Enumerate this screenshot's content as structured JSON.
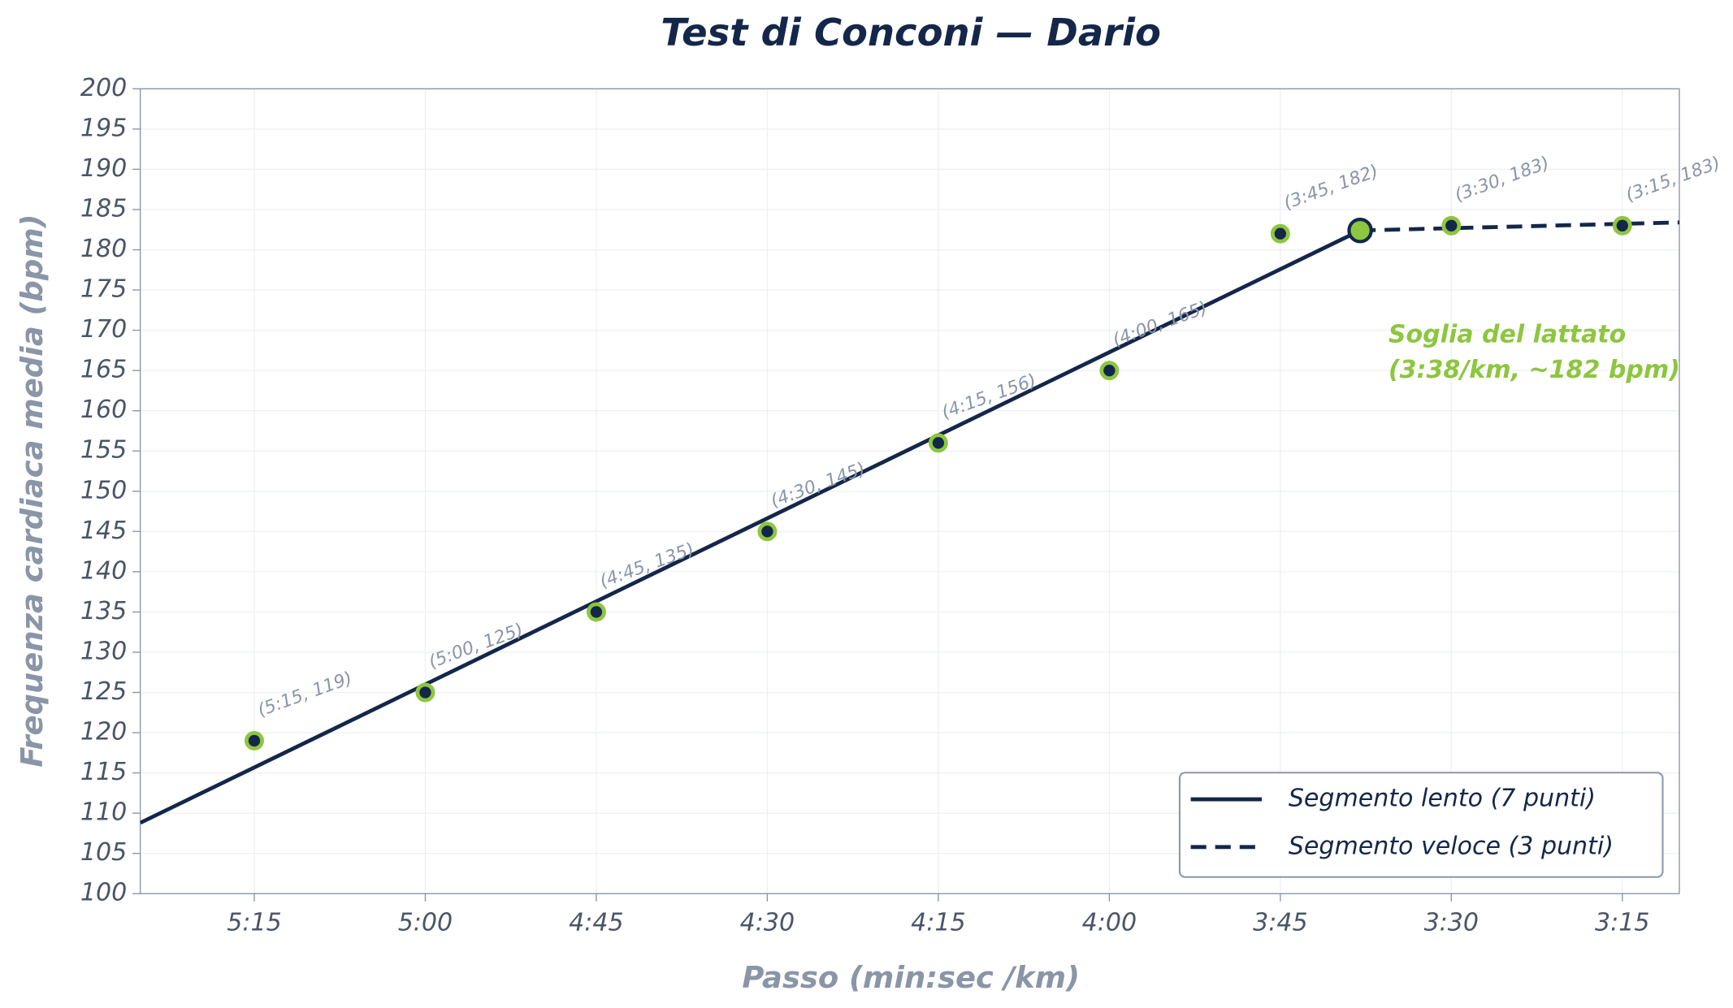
{
  "chart_data": {
    "type": "line",
    "title": "Test di Conconi — Dario",
    "x_label": "Passo (min:sec /km)",
    "y_label": "Frequenza cardiaca media (bpm)",
    "xlim": [
      325,
      190
    ],
    "ylim": [
      100,
      200
    ],
    "xticks": [
      {
        "value": 315,
        "label": "5:15"
      },
      {
        "value": 300,
        "label": "5:00"
      },
      {
        "value": 285,
        "label": "4:45"
      },
      {
        "value": 270,
        "label": "4:30"
      },
      {
        "value": 255,
        "label": "4:15"
      },
      {
        "value": 240,
        "label": "4:00"
      },
      {
        "value": 225,
        "label": "3:45"
      },
      {
        "value": 210,
        "label": "3:30"
      },
      {
        "value": 195,
        "label": "3:15"
      }
    ],
    "yticks": [
      100,
      105,
      110,
      115,
      120,
      125,
      130,
      135,
      140,
      145,
      150,
      155,
      160,
      165,
      170,
      175,
      180,
      185,
      190,
      195,
      200
    ],
    "grid": true,
    "legend": "lower right",
    "series": [
      {
        "name": "Segmento lento (7 punti)",
        "color": "#14274a",
        "style": "solid",
        "x": [
          325,
          218
        ],
        "values": [
          108.8,
          182.4
        ]
      },
      {
        "name": "Segmento veloce (3 punti)",
        "color": "#14274a",
        "style": "dashed",
        "x": [
          218,
          190
        ],
        "values": [
          182.4,
          183.4
        ]
      }
    ],
    "points": {
      "color": "#14274a",
      "edge_color": "#8dc63f",
      "x": [
        315,
        300,
        285,
        270,
        255,
        240,
        225,
        210,
        195
      ],
      "values": [
        119,
        125,
        135,
        145,
        156,
        165,
        182,
        183,
        183
      ],
      "value_labels": [
        "(5:15, 119)",
        "(5:00, 125)",
        "(4:45, 135)",
        "(4:30, 145)",
        "(4:15, 156)",
        "(4:00, 165)",
        "(3:45, 182)",
        "(3:30, 183)",
        "(3:15, 183)"
      ]
    },
    "breakpoint": {
      "x": 218,
      "y": 182.4,
      "color": "#8dc63f",
      "label": [
        "Soglia del lattato",
        "(3:38/km, ~182 bpm)"
      ]
    }
  }
}
